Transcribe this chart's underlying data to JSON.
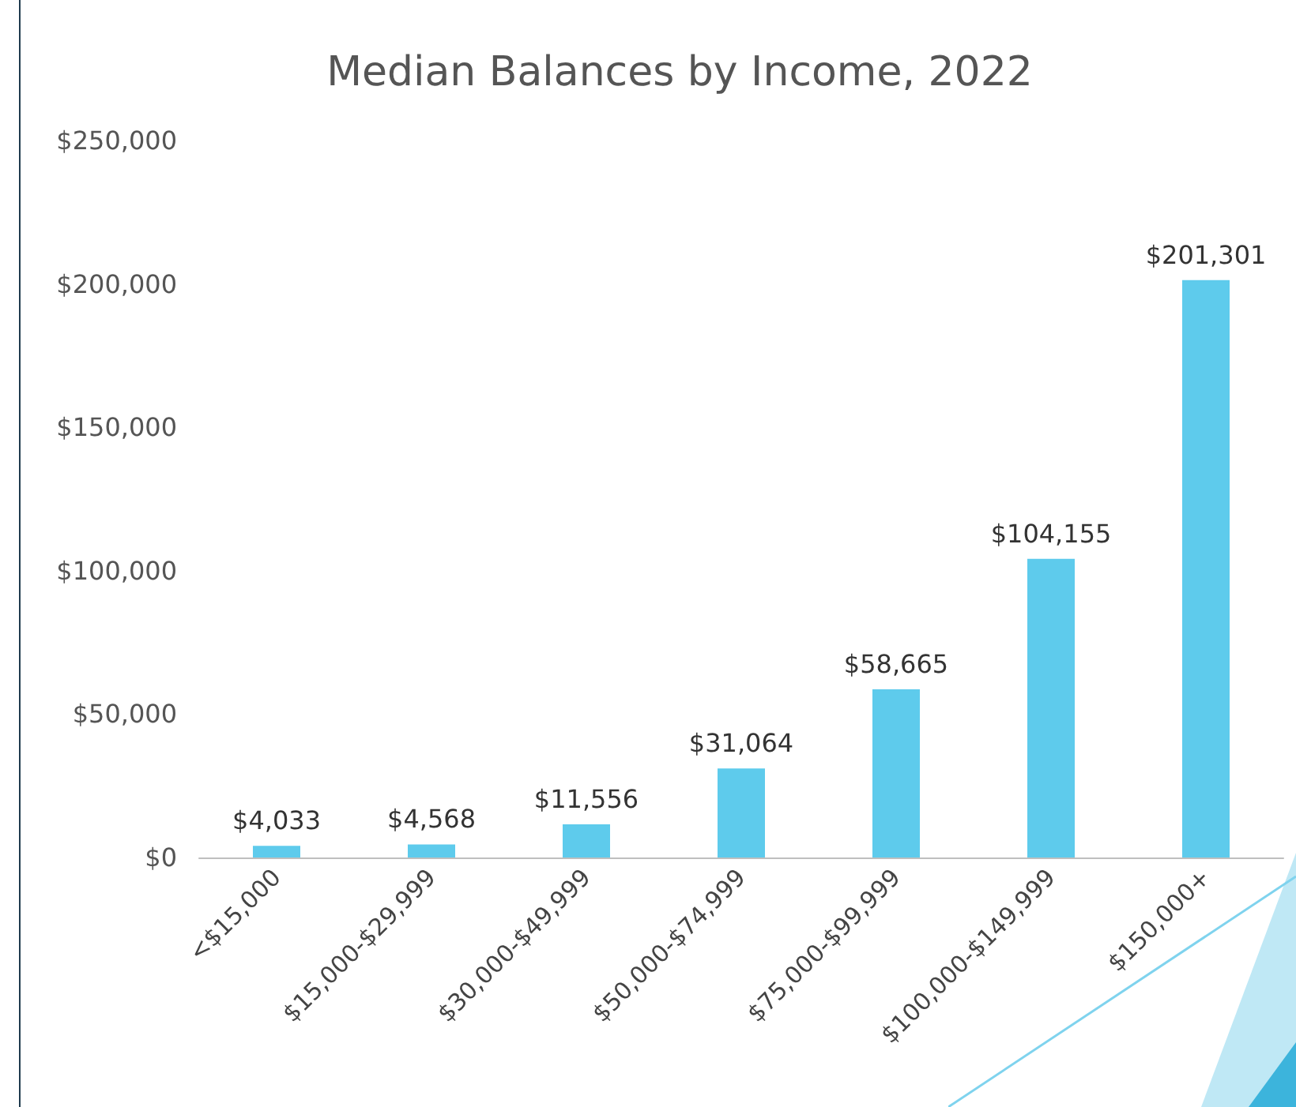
{
  "chart_data": {
    "type": "bar",
    "title": "Median Balances by Income, 2022",
    "categories": [
      "<$15,000",
      "$15,000-$29,999",
      "$30,000-$49,999",
      "$50,000-$74,999",
      "$75,000-$99,999",
      "$100,000-$149,999",
      "$150,000+"
    ],
    "values": [
      4033,
      4568,
      11556,
      31064,
      58665,
      104155,
      201301
    ],
    "value_labels": [
      "$4,033",
      "$4,568",
      "$11,556",
      "$31,064",
      "$58,665",
      "$104,155",
      "$201,301"
    ],
    "color": "#5ecbec",
    "ylim": [
      0,
      250000
    ],
    "yticks": [
      {
        "value": 0,
        "label": "$0"
      },
      {
        "value": 50000,
        "label": "$50,000"
      },
      {
        "value": 100000,
        "label": "$100,000"
      },
      {
        "value": 150000,
        "label": "$150,000"
      },
      {
        "value": 200000,
        "label": "$200,000"
      },
      {
        "value": 250000,
        "label": "$250,000"
      }
    ],
    "grid": false
  }
}
